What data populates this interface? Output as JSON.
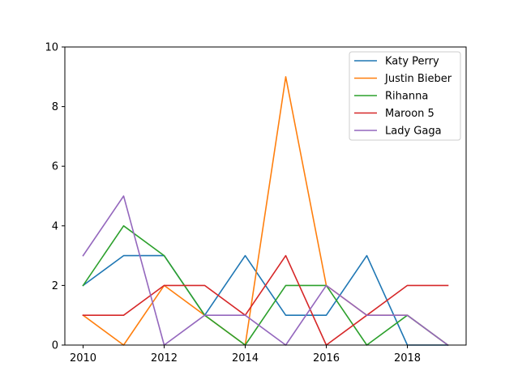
{
  "chart_data": {
    "type": "line",
    "title": "",
    "xlabel": "",
    "ylabel": "",
    "x": [
      2010,
      2011,
      2012,
      2013,
      2014,
      2015,
      2016,
      2017,
      2018,
      2019
    ],
    "xlim": [
      2009.55,
      2019.45
    ],
    "ylim": [
      0,
      10
    ],
    "xticks": [
      2010,
      2012,
      2014,
      2016,
      2018
    ],
    "yticks": [
      0,
      2,
      4,
      6,
      8,
      10
    ],
    "grid": false,
    "legend_position": "top-right",
    "series": [
      {
        "name": "Katy Perry",
        "color": "#1f77b4",
        "values": [
          2,
          3,
          3,
          1,
          3,
          1,
          1,
          3,
          0,
          0
        ]
      },
      {
        "name": "Justin Bieber",
        "color": "#ff7f0e",
        "values": [
          1,
          0,
          2,
          1,
          0,
          9,
          2,
          1,
          1,
          0
        ]
      },
      {
        "name": "Rihanna",
        "color": "#2ca02c",
        "values": [
          2,
          4,
          3,
          1,
          0,
          2,
          2,
          0,
          1,
          0
        ]
      },
      {
        "name": "Maroon 5",
        "color": "#d62728",
        "values": [
          1,
          1,
          2,
          2,
          1,
          3,
          0,
          1,
          2,
          2
        ]
      },
      {
        "name": "Lady Gaga",
        "color": "#9467bd",
        "values": [
          3,
          5,
          0,
          1,
          1,
          0,
          2,
          1,
          1,
          0
        ]
      }
    ]
  }
}
